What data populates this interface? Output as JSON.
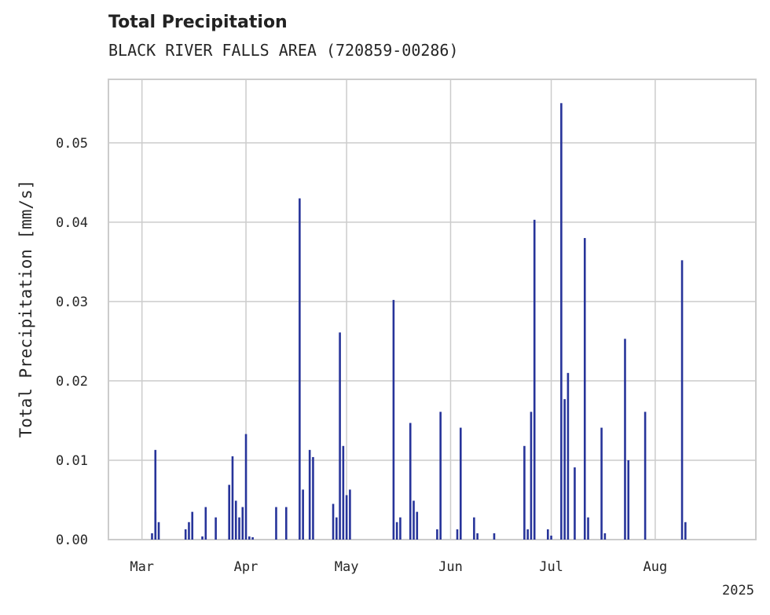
{
  "chart_data": {
    "type": "bar",
    "title": "Total Precipitation",
    "subtitle": "BLACK RIVER FALLS AREA (720859-00286)",
    "xlabel": "",
    "ylabel": "Total Precipitation [mm/s]",
    "year_label": "2025",
    "xlim": [
      "2025-02-19",
      "2025-08-31"
    ],
    "ylim": [
      0,
      0.058
    ],
    "grid": true,
    "x_ticks": [
      {
        "date": "2025-03-01",
        "label": "Mar"
      },
      {
        "date": "2025-04-01",
        "label": "Apr"
      },
      {
        "date": "2025-05-01",
        "label": "May"
      },
      {
        "date": "2025-06-01",
        "label": "Jun"
      },
      {
        "date": "2025-07-01",
        "label": "Jul"
      },
      {
        "date": "2025-08-01",
        "label": "Aug"
      }
    ],
    "y_ticks": [
      {
        "value": 0,
        "label": "0.00"
      },
      {
        "value": 0.01,
        "label": "0.01"
      },
      {
        "value": 0.02,
        "label": "0.02"
      },
      {
        "value": 0.03,
        "label": "0.03"
      },
      {
        "value": 0.04,
        "label": "0.04"
      },
      {
        "value": 0.05,
        "label": "0.05"
      }
    ],
    "series": [
      {
        "color": "#27349a",
        "x": [
          "2025-03-04",
          "2025-03-05",
          "2025-03-05",
          "2025-03-06",
          "2025-03-14",
          "2025-03-15",
          "2025-03-16",
          "2025-03-19",
          "2025-03-20",
          "2025-03-23",
          "2025-03-27",
          "2025-03-28",
          "2025-03-29",
          "2025-03-30",
          "2025-03-31",
          "2025-04-01",
          "2025-04-02",
          "2025-04-03",
          "2025-04-10",
          "2025-04-13",
          "2025-04-17",
          "2025-04-18",
          "2025-04-20",
          "2025-04-21",
          "2025-04-27",
          "2025-04-28",
          "2025-04-29",
          "2025-04-30",
          "2025-05-01",
          "2025-05-02",
          "2025-05-15",
          "2025-05-16",
          "2025-05-17",
          "2025-05-20",
          "2025-05-21",
          "2025-05-22",
          "2025-05-28",
          "2025-05-29",
          "2025-06-03",
          "2025-06-04",
          "2025-06-08",
          "2025-06-09",
          "2025-06-14",
          "2025-06-23",
          "2025-06-24",
          "2025-06-25",
          "2025-06-26",
          "2025-06-30",
          "2025-07-01",
          "2025-07-04",
          "2025-07-05",
          "2025-07-06",
          "2025-07-08",
          "2025-07-11",
          "2025-07-12",
          "2025-07-16",
          "2025-07-17",
          "2025-07-23",
          "2025-07-24",
          "2025-07-29",
          "2025-08-09",
          "2025-08-10"
        ],
        "values": [
          0.0008,
          0.0035,
          0.0113,
          0.0022,
          0.0013,
          0.0022,
          0.0035,
          0.0004,
          0.0041,
          0.0028,
          0.0069,
          0.0105,
          0.0049,
          0.0028,
          0.0041,
          0.0133,
          0.0004,
          0.0003,
          0.0041,
          0.0041,
          0.043,
          0.0063,
          0.0113,
          0.0104,
          0.0045,
          0.0028,
          0.0261,
          0.0118,
          0.0056,
          0.0063,
          0.0302,
          0.0022,
          0.0028,
          0.0147,
          0.0049,
          0.0035,
          0.0013,
          0.0161,
          0.0013,
          0.0141,
          0.0028,
          0.0008,
          0.0008,
          0.0118,
          0.0013,
          0.0161,
          0.0403,
          0.0013,
          0.0005,
          0.055,
          0.0177,
          0.021,
          0.0091,
          0.038,
          0.0028,
          0.0141,
          0.0008,
          0.0253,
          0.01,
          0.0161,
          0.0352,
          0.0022
        ]
      }
    ]
  }
}
